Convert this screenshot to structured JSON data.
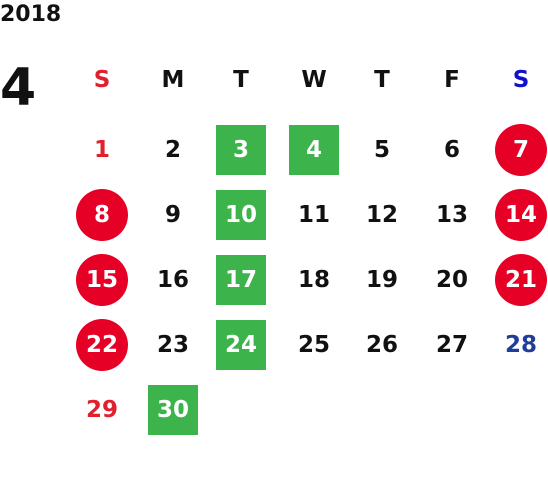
{
  "year": "2018",
  "month": "4",
  "weekdays": [
    "S",
    "M",
    "T",
    "W",
    "T",
    "F",
    "S"
  ],
  "weeks": [
    [
      1,
      2,
      3,
      4,
      5,
      6,
      7
    ],
    [
      8,
      9,
      10,
      11,
      12,
      13,
      14
    ],
    [
      15,
      16,
      17,
      18,
      19,
      20,
      21
    ],
    [
      22,
      23,
      24,
      25,
      26,
      27,
      28
    ],
    [
      29,
      30
    ]
  ]
}
